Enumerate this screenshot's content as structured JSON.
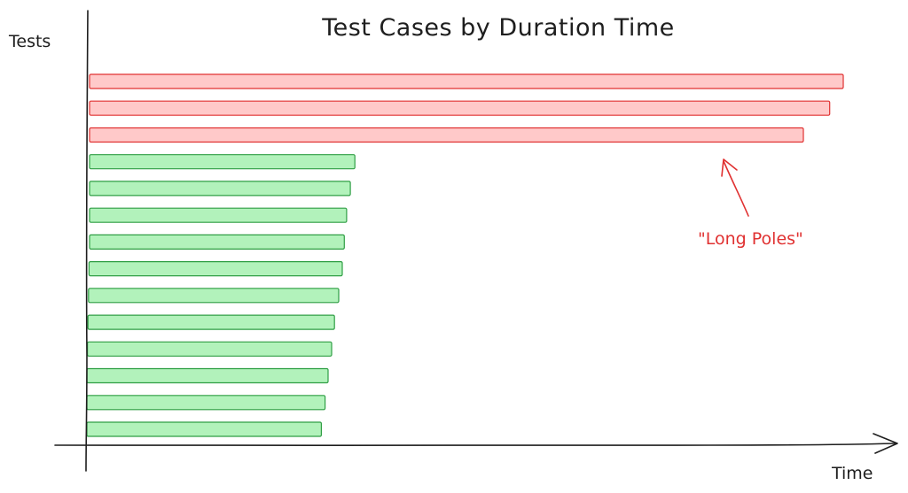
{
  "chart_data": {
    "type": "bar",
    "orientation": "horizontal",
    "title": "Test Cases by Duration Time",
    "xlabel": "Time",
    "ylabel": "Tests",
    "grid": false,
    "legend": "none",
    "xlim": [
      0,
      100
    ],
    "values": [
      100,
      98.2,
      94.7,
      35.2,
      34.6,
      34.1,
      33.8,
      33.6,
      33.2,
      32.7,
      32.4,
      32.0,
      31.6,
      31.1
    ],
    "colors": {
      "long_pole_fill": "#ffc9c9",
      "long_pole_stroke": "#e03131",
      "normal_fill": "#b2f2bb",
      "normal_stroke": "#2f9e44",
      "axis": "#1e1e1e",
      "annotation": "#e03131"
    },
    "long_pole_count": 3,
    "annotation": {
      "text": "\"Long Poles\""
    }
  }
}
